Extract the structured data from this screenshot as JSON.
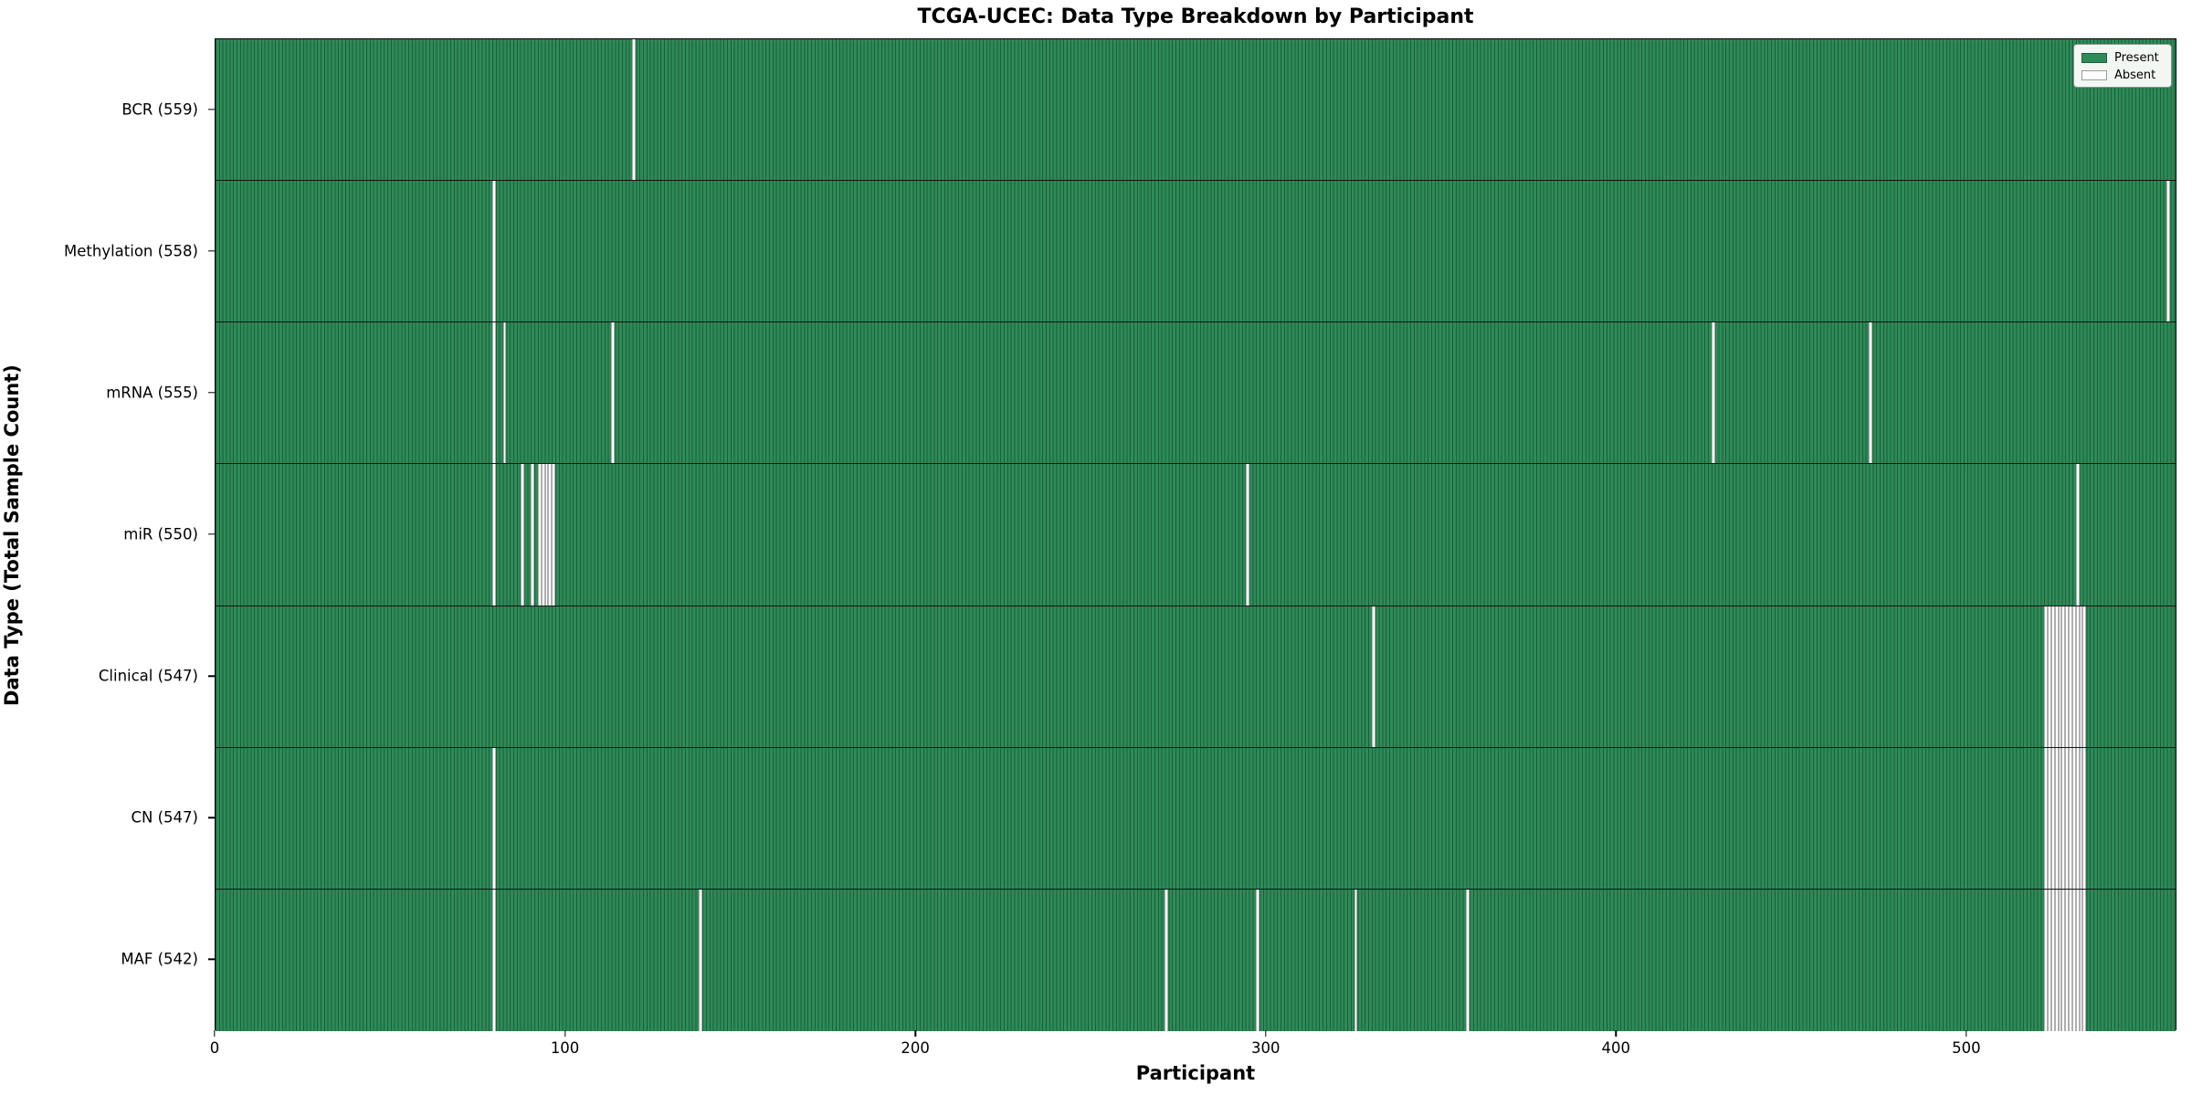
{
  "figure": {
    "title": "TCGA-UCEC: Data Type Breakdown by Participant",
    "xlabel": "Participant",
    "ylabel": "Data Type (Total Sample Count)",
    "legend": {
      "present_label": "Present",
      "absent_label": "Absent"
    }
  },
  "chart_data": {
    "type": "heatmap",
    "title": "TCGA-UCEC: Data Type Breakdown by Participant",
    "xlabel": "Participant",
    "ylabel": "Data Type (Total Sample Count)",
    "legend_entries": [
      {
        "label": "Present",
        "color": "#2e8b57"
      },
      {
        "label": "Absent",
        "color": "#ffffff"
      }
    ],
    "legend_position": "upper right",
    "grid": false,
    "x_ticks": [
      0,
      100,
      200,
      300,
      400,
      500
    ],
    "xlim": [
      0,
      560
    ],
    "total_participants": 560,
    "cell_values": {
      "present": 1,
      "absent": 0
    },
    "rows": [
      {
        "label": "BCR",
        "total_samples": 559,
        "tick_label": "BCR (559)",
        "absent_participants": [
          119
        ]
      },
      {
        "label": "Methylation",
        "total_samples": 558,
        "tick_label": "Methylation (558)",
        "absent_participants": [
          79,
          557
        ]
      },
      {
        "label": "mRNA",
        "total_samples": 555,
        "tick_label": "mRNA (555)",
        "absent_participants": [
          79,
          82,
          113,
          427,
          472
        ]
      },
      {
        "label": "miR",
        "total_samples": 550,
        "tick_label": "miR (550)",
        "absent_participants": [
          79,
          87,
          90,
          92,
          93,
          94,
          95,
          96,
          294,
          531
        ]
      },
      {
        "label": "Clinical",
        "total_samples": 547,
        "tick_label": "Clinical (547)",
        "absent_participants": [
          330,
          522,
          523,
          524,
          525,
          526,
          527,
          528,
          529,
          530,
          531,
          532,
          533
        ]
      },
      {
        "label": "CN",
        "total_samples": 547,
        "tick_label": "CN (547)",
        "absent_participants": [
          79,
          522,
          523,
          524,
          525,
          526,
          527,
          528,
          529,
          530,
          531,
          532,
          533
        ]
      },
      {
        "label": "MAF",
        "total_samples": 542,
        "tick_label": "MAF (542)",
        "absent_participants": [
          79,
          138,
          271,
          297,
          325,
          357,
          522,
          523,
          524,
          525,
          526,
          527,
          528,
          529,
          530,
          531,
          532,
          533
        ]
      }
    ],
    "colors": {
      "present_fill": "#2e8b57",
      "present_edge": "#1b5f3c",
      "absent_fill": "#ffffff",
      "absent_edge": "#aeaeae",
      "row_divider": "#141414",
      "axes_edge": "#000000",
      "legend_background": "#f3f7f3"
    }
  }
}
